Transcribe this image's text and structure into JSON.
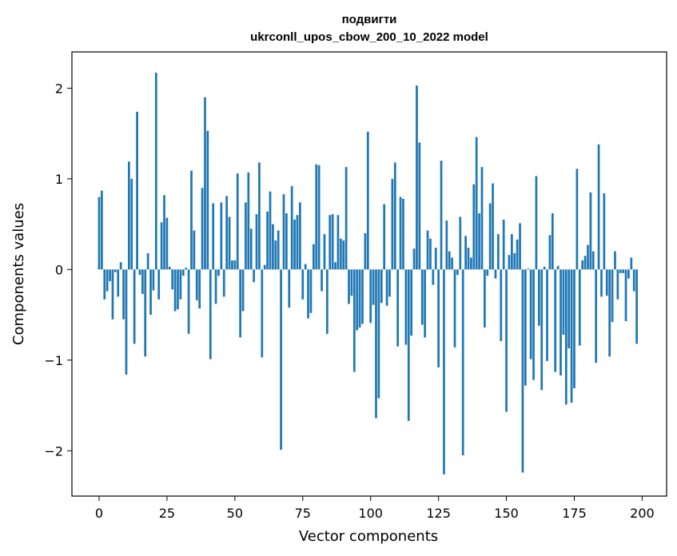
{
  "chart_data": {
    "type": "bar",
    "title": "подвигти",
    "subtitle": "ukrconll_upos_cbow_200_10_2022 model",
    "xlabel": "Vector components",
    "ylabel": "Components values",
    "xlim": [
      -10,
      209
    ],
    "ylim": [
      -2.5,
      2.4
    ],
    "xticks": [
      0,
      25,
      50,
      75,
      100,
      125,
      150,
      175,
      200
    ],
    "xtick_labels": [
      "0",
      "25",
      "50",
      "75",
      "100",
      "125",
      "150",
      "175",
      "200"
    ],
    "yticks": [
      -2,
      -1,
      0,
      1,
      2
    ],
    "ytick_labels": [
      "−2",
      "−1",
      "0",
      "1",
      "2"
    ],
    "bar_color": "#1f77b4",
    "values": [
      0.8,
      0.87,
      -0.33,
      -0.24,
      -0.13,
      -0.55,
      -0.03,
      -0.3,
      0.08,
      -0.55,
      -1.16,
      1.19,
      1.0,
      -0.82,
      1.74,
      -0.06,
      -0.27,
      -0.96,
      0.18,
      -0.5,
      -0.23,
      2.17,
      -0.33,
      0.52,
      0.82,
      0.57,
      0.03,
      -0.22,
      -0.46,
      -0.44,
      -0.33,
      -0.07,
      0.02,
      -0.71,
      1.09,
      0.43,
      -0.34,
      -0.43,
      0.9,
      1.9,
      1.53,
      -0.99,
      0.73,
      -0.38,
      -0.07,
      0.74,
      -0.3,
      0.81,
      0.58,
      0.1,
      0.1,
      1.06,
      -0.75,
      -0.46,
      0.74,
      1.07,
      0.45,
      -0.14,
      0.61,
      1.18,
      -0.97,
      0.05,
      0.64,
      0.86,
      0.5,
      0.32,
      0.43,
      -1.99,
      0.83,
      0.62,
      -0.42,
      0.92,
      0.55,
      0.6,
      0.74,
      -0.33,
      0.06,
      -0.54,
      -0.48,
      0.28,
      1.16,
      1.15,
      -0.24,
      0.39,
      -0.71,
      0.6,
      0.61,
      0.08,
      0.6,
      0.34,
      0.32,
      1.13,
      -0.38,
      -0.29,
      -1.13,
      -0.67,
      -0.64,
      -0.6,
      0.4,
      1.52,
      -0.59,
      -0.39,
      -1.64,
      -1.42,
      -0.37,
      0.72,
      -0.4,
      -0.3,
      1.0,
      1.18,
      -0.85,
      0.8,
      0.78,
      -0.83,
      -1.67,
      -0.73,
      0.23,
      2.03,
      1.4,
      -0.61,
      -0.75,
      0.43,
      0.34,
      -0.17,
      0.24,
      -1.08,
      1.2,
      -2.26,
      0.54,
      0.2,
      0.13,
      -0.86,
      -0.06,
      0.58,
      -2.05,
      0.37,
      0.24,
      0.13,
      0.94,
      1.46,
      0.62,
      1.13,
      -0.64,
      -0.07,
      0.73,
      0.95,
      -0.1,
      0.39,
      -0.79,
      0.55,
      -1.57,
      0.16,
      0.39,
      0.18,
      0.33,
      0.51,
      -2.24,
      -1.28,
      0.01,
      -0.99,
      -1.22,
      1.03,
      -0.62,
      -1.33,
      0.03,
      -1.01,
      0.38,
      0.62,
      -1.13,
      0.04,
      -1.17,
      -0.72,
      -1.49,
      -0.87,
      -1.47,
      -1.31,
      1.11,
      -0.84,
      0.1,
      0.15,
      0.27,
      0.85,
      0.2,
      -1.03,
      1.38,
      -0.3,
      0.84,
      -0.29,
      -0.96,
      -0.58,
      0.2,
      -0.33,
      -0.04,
      -0.04,
      -0.57,
      -0.1,
      0.13,
      -0.24,
      -0.82
    ]
  }
}
